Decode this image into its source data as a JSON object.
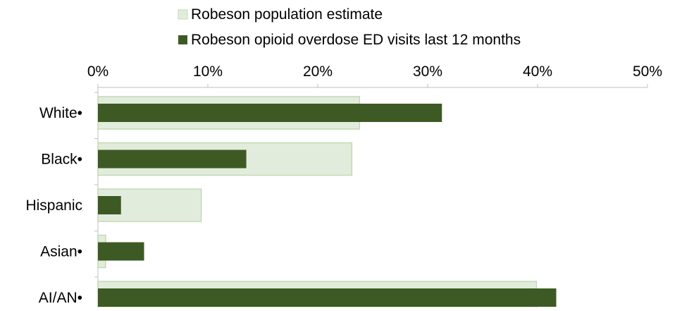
{
  "chart_data": {
    "type": "bar",
    "orientation": "horizontal",
    "categories": [
      "White•",
      "Black•",
      "Hispanic",
      "Asian•",
      "AI/AN•"
    ],
    "series": [
      {
        "name": "Robeson population estimate",
        "color": "#e2ecdc",
        "border_color": "#c4d9b4",
        "values": [
          23.8,
          23.1,
          9.4,
          0.7,
          39.9
        ]
      },
      {
        "name": "Robeson opioid overdose ED visits last 12 months",
        "color": "#3e5a24",
        "values": [
          31.3,
          13.5,
          2.1,
          4.2,
          41.7
        ]
      }
    ],
    "xlim": [
      0,
      50
    ],
    "x_ticks": [
      "0%",
      "10%",
      "20%",
      "30%",
      "40%",
      "50%"
    ],
    "x_axis_position": "top",
    "grid": false,
    "legend_position": "top"
  }
}
